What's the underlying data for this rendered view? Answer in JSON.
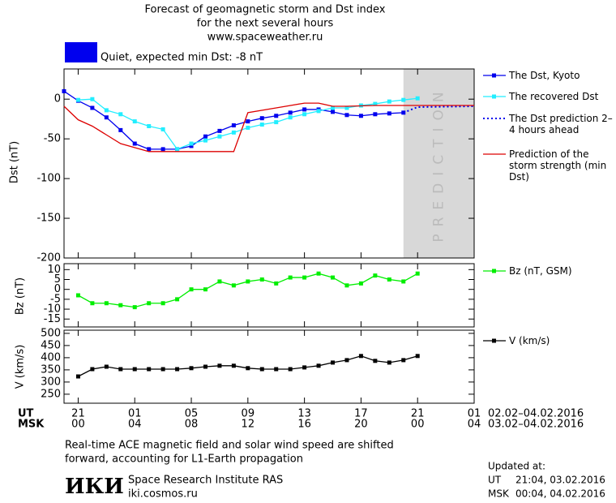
{
  "header": {
    "lines": [
      "Forecast of geomagnetic storm and Dst index",
      "for the next several hours",
      "www.spaceweather.ru"
    ],
    "status": "Quiet, expected min Dst: -8 nT",
    "status_color": "#0000ee"
  },
  "chart_data": [
    {
      "type": "line",
      "ylabel": "Dst (nT)",
      "xlim": [
        -1,
        28
      ],
      "ylim": [
        -200,
        38
      ],
      "xticks": [
        0,
        4,
        8,
        12,
        16,
        20,
        24,
        28
      ],
      "yticks": [
        0,
        -50,
        -100,
        -150,
        -200
      ],
      "prediction_zone": {
        "range": [
          23,
          28
        ],
        "label": "PREDICTION",
        "color": "#d8d8d8"
      },
      "series": [
        {
          "name": "The Dst, Kyoto",
          "color": "#0000ee",
          "marker": "square",
          "dash": "solid",
          "x": [
            -1,
            0,
            1,
            2,
            3,
            4,
            5,
            6,
            7,
            8,
            9,
            10,
            11,
            12,
            13,
            14,
            15,
            16,
            17,
            18,
            19,
            20,
            21,
            22,
            23
          ],
          "values": [
            10,
            -2,
            -11,
            -23,
            -39,
            -56,
            -63,
            -63,
            -63,
            -59,
            -47,
            -40,
            -33,
            -28,
            -24,
            -21,
            -17,
            -13,
            -13,
            -16,
            -20,
            -21,
            -19,
            -18,
            -17
          ]
        },
        {
          "name": "The recovered Dst",
          "color": "#22eeff",
          "marker": "square",
          "dash": "solid",
          "x": [
            0,
            1,
            2,
            3,
            4,
            5,
            6,
            7,
            8,
            9,
            10,
            11,
            12,
            13,
            14,
            15,
            16,
            17,
            18,
            19,
            20,
            21,
            22,
            23,
            24
          ],
          "values": [
            -1,
            0,
            -14,
            -19,
            -28,
            -34,
            -38,
            -63,
            -56,
            -52,
            -47,
            -42,
            -36,
            -32,
            -29,
            -23,
            -19,
            -15,
            -11,
            -11,
            -8,
            -6,
            -3,
            -1,
            1
          ]
        },
        {
          "name": "The Dst prediction 2–4 hours ahead",
          "color": "#0000ee",
          "marker": "none",
          "dash": "dotted",
          "x": [
            23,
            24,
            28
          ],
          "values": [
            -17,
            -10,
            -9
          ]
        },
        {
          "name": "Prediction of the storm strength (min Dst)",
          "color": "#dd0000",
          "marker": "none",
          "dash": "solid",
          "x": [
            -1,
            0,
            1,
            2,
            3,
            5,
            11,
            12,
            14,
            16,
            17,
            18,
            19,
            21,
            28
          ],
          "values": [
            -9,
            -26,
            -34,
            -45,
            -56,
            -66,
            -66,
            -17,
            -11,
            -5,
            -5,
            -9,
            -9,
            -8,
            -8
          ]
        }
      ]
    },
    {
      "type": "line",
      "ylabel": "Bz (nT)",
      "xlim": [
        -1,
        28
      ],
      "ylim": [
        -19,
        13
      ],
      "xticks": [
        0,
        4,
        8,
        12,
        16,
        20,
        24,
        28
      ],
      "yticks": [
        10,
        5,
        0,
        -5,
        -10,
        -15
      ],
      "series": [
        {
          "name": "Bz (nT, GSM)",
          "color": "#00ee00",
          "marker": "square",
          "dash": "solid",
          "x": [
            0,
            1,
            2,
            3,
            4,
            5,
            6,
            7,
            8,
            9,
            10,
            11,
            12,
            13,
            14,
            15,
            16,
            17,
            18,
            19,
            20,
            21,
            22,
            23,
            24
          ],
          "values": [
            -3,
            -7,
            -7,
            -8,
            -9,
            -7,
            -7,
            -5,
            0,
            0,
            4,
            2,
            4,
            5,
            3,
            6,
            6,
            8,
            6,
            2,
            3,
            7,
            5,
            4,
            8
          ]
        }
      ]
    },
    {
      "type": "line",
      "ylabel": "V (km/s)",
      "xlim": [
        -1,
        28
      ],
      "ylim": [
        213,
        513
      ],
      "xticks": [
        {
          "value": 0,
          "label": "21"
        },
        {
          "value": 4,
          "label": "01"
        },
        {
          "value": 8,
          "label": "05"
        },
        {
          "value": 12,
          "label": "09"
        },
        {
          "value": 16,
          "label": "13"
        },
        {
          "value": 20,
          "label": "17"
        },
        {
          "value": 24,
          "label": "21"
        },
        {
          "value": 28,
          "label": "01"
        }
      ],
      "xtick_labels_msk": [
        "00",
        "04",
        "08",
        "12",
        "16",
        "20",
        "00",
        "04"
      ],
      "row_labels": [
        "UT",
        "MSK"
      ],
      "date_ranges": [
        "02.02–04.02.2016",
        "03.02–04.02.2016"
      ],
      "yticks": [
        500,
        450,
        400,
        350,
        300,
        250
      ],
      "series": [
        {
          "name": "V (km/s)",
          "color": "#000000",
          "marker": "square",
          "dash": "solid",
          "x": [
            0,
            1,
            2,
            3,
            4,
            5,
            6,
            7,
            8,
            9,
            10,
            11,
            12,
            13,
            14,
            15,
            16,
            17,
            18,
            19,
            20,
            21,
            22,
            23,
            24
          ],
          "values": [
            323,
            353,
            363,
            353,
            353,
            353,
            353,
            353,
            357,
            363,
            367,
            367,
            357,
            353,
            353,
            353,
            360,
            367,
            380,
            390,
            407,
            387,
            380,
            390,
            407
          ]
        }
      ]
    }
  ],
  "footer": {
    "note": [
      "Real-time ACE magnetic field and solar wind speed are shifted",
      "forward, accounting for L1-Earth propagation"
    ],
    "logo": "ИКИ",
    "institute": "Space Research Institute RAS",
    "site": "iki.cosmos.ru",
    "updated_title": "Updated at:",
    "updated": [
      {
        "label": "UT",
        "time": "21:04, 03.02.2016"
      },
      {
        "label": "MSK",
        "time": "00:04, 04.02.2016"
      }
    ]
  }
}
